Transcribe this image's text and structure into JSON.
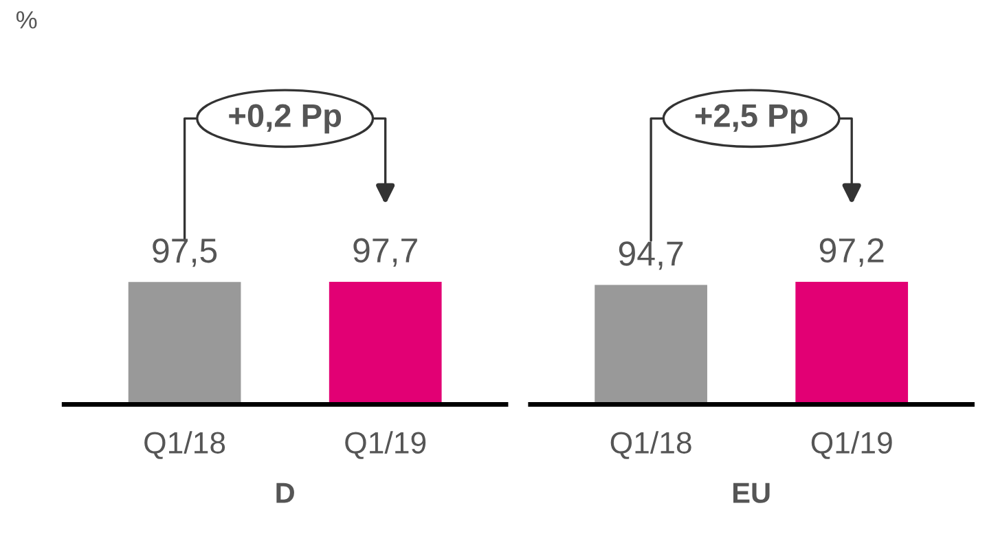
{
  "chart_data": [
    {
      "type": "bar",
      "title": "%",
      "xlabel": "D",
      "categories": [
        "Q1/18",
        "Q1/19"
      ],
      "values": [
        97.5,
        97.7
      ],
      "value_labels": [
        "97,5",
        "97,7"
      ],
      "colors": [
        "#999999",
        "#e20074"
      ],
      "annotations": [
        "+0,2 Pp"
      ]
    },
    {
      "type": "bar",
      "xlabel": "EU",
      "categories": [
        "Q1/18",
        "Q1/19"
      ],
      "values": [
        94.7,
        97.2
      ],
      "value_labels": [
        "94,7",
        "97,2"
      ],
      "colors": [
        "#999999",
        "#e20074"
      ],
      "annotations": [
        "+2,5 Pp"
      ]
    }
  ]
}
